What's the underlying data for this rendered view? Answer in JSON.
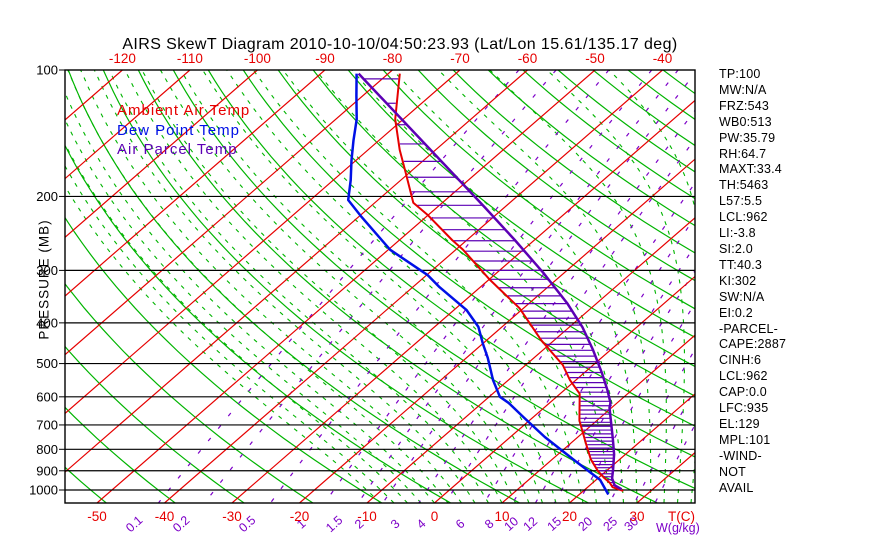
{
  "title": "AIRS SkewT Diagram 2010-10-10/04:50:23.93 (Lat/Lon 15.61/135.17 deg)",
  "legend": [
    {
      "label": "Ambient Air Temp",
      "color": "#e60000"
    },
    {
      "label": "Dew Point Temp",
      "color": "#0010e6"
    },
    {
      "label": "Air Parcel Temp",
      "color": "#5c00b4"
    }
  ],
  "stats": [
    "TP:100",
    "MW:N/A",
    "FRZ:543",
    "WB0:513",
    "PW:35.79",
    "RH:64.7",
    "MAXT:33.4",
    "TH:5463",
    "L57:5.5",
    "LCL:962",
    "LI:-3.8",
    "SI:2.0",
    "TT:40.3",
    "KI:302",
    "SW:N/A",
    "EI:0.2",
    "-PARCEL-",
    "CAPE:2887",
    "CINH:6",
    "LCL:962",
    "CAP:0.0",
    "LFC:935",
    "EL:129",
    "MPL:101",
    "-WIND-",
    "NOT",
    "AVAIL"
  ],
  "chart_data": {
    "type": "line",
    "variant": "skewt-log-p",
    "pressure_axis": {
      "label": "PRESSURE (MB)",
      "ticks": [
        100,
        200,
        300,
        400,
        500,
        600,
        700,
        800,
        900,
        1000
      ],
      "log": true,
      "min": 100,
      "max": 1074
    },
    "temp_axis_bottom": {
      "label": "T(C)",
      "ticks": [
        -50,
        -40,
        -30,
        -20,
        -10,
        0,
        10,
        20,
        30
      ],
      "color": "#e60000"
    },
    "temp_axis_top": {
      "ticks": [
        -120,
        -110,
        -100,
        -90,
        -80,
        -70,
        -60,
        -50,
        -40
      ],
      "color": "#e60000"
    },
    "mixing_ratio": {
      "label": "W(g/kg)",
      "values": [
        "0.1",
        "0.2",
        "0.5",
        "1",
        "1.5",
        "2",
        "3",
        "4",
        "6",
        "8",
        "10",
        "12",
        "15",
        "20",
        "25",
        "30"
      ],
      "color": "#7d00c8"
    },
    "grid": {
      "isotherms_c": {
        "min": -160,
        "max": 40,
        "step": 10,
        "color": "#e60000"
      },
      "dry_adiabats_theta_k": {
        "min": 210,
        "max": 460,
        "step": 10,
        "color": "#00b400"
      },
      "moist_adiabats_surface_c": {
        "min": -8,
        "max": 38,
        "step": 2,
        "color": "#00b400",
        "dashed": true
      }
    },
    "hatch": {
      "between": [
        "ambient",
        "parcel"
      ],
      "color": "#5c00b4",
      "dp_mb": 15
    },
    "series": [
      {
        "id": "ambient",
        "name": "Ambient Air Temp",
        "color": "#e60000",
        "width": 2,
        "points": [
          {
            "p": 102,
            "t": -78.3
          },
          {
            "p": 113,
            "t": -75.4
          },
          {
            "p": 131,
            "t": -71.2
          },
          {
            "p": 155,
            "t": -65.3
          },
          {
            "p": 173,
            "t": -61.1
          },
          {
            "p": 207,
            "t": -54.3
          },
          {
            "p": 221,
            "t": -50.2
          },
          {
            "p": 254,
            "t": -42.2
          },
          {
            "p": 268,
            "t": -38.9
          },
          {
            "p": 316,
            "t": -29.8
          },
          {
            "p": 369,
            "t": -20.6
          },
          {
            "p": 440,
            "t": -11.9
          },
          {
            "p": 504,
            "t": -4.5
          },
          {
            "p": 547,
            "t": -0.9
          },
          {
            "p": 590,
            "t": 2.9
          },
          {
            "p": 683,
            "t": 7.4
          },
          {
            "p": 777,
            "t": 12.4
          },
          {
            "p": 845,
            "t": 15.7
          },
          {
            "p": 902,
            "t": 18.8
          },
          {
            "p": 938,
            "t": 21.0
          },
          {
            "p": 961,
            "t": 22.5
          },
          {
            "p": 985,
            "t": 23.7
          },
          {
            "p": 1005,
            "t": 25.9
          }
        ]
      },
      {
        "id": "dewpoint",
        "name": "Dew Point Temp",
        "color": "#0010e6",
        "width": 2.5,
        "points": [
          {
            "p": 102,
            "t": -84.7
          },
          {
            "p": 115,
            "t": -81.0
          },
          {
            "p": 131,
            "t": -76.9
          },
          {
            "p": 147,
            "t": -73.8
          },
          {
            "p": 164,
            "t": -70.7
          },
          {
            "p": 183,
            "t": -67.4
          },
          {
            "p": 204,
            "t": -64.4
          },
          {
            "p": 224,
            "t": -59.5
          },
          {
            "p": 268,
            "t": -49.7
          },
          {
            "p": 308,
            "t": -39.8
          },
          {
            "p": 329,
            "t": -36.0
          },
          {
            "p": 373,
            "t": -28.1
          },
          {
            "p": 409,
            "t": -23.5
          },
          {
            "p": 447,
            "t": -20.1
          },
          {
            "p": 485,
            "t": -16.8
          },
          {
            "p": 547,
            "t": -12.3
          },
          {
            "p": 600,
            "t": -8.4
          },
          {
            "p": 620,
            "t": -6.1
          },
          {
            "p": 670,
            "t": -1.5
          },
          {
            "p": 748,
            "t": 5.1
          },
          {
            "p": 853,
            "t": 13.7
          },
          {
            "p": 946,
            "t": 20.6
          },
          {
            "p": 1025,
            "t": 24.3
          }
        ]
      },
      {
        "id": "parcel",
        "name": "Air Parcel Temp",
        "color": "#5c00b4",
        "width": 2.5,
        "points": [
          {
            "p": 102,
            "t": -84.4
          },
          {
            "p": 212,
            "t": -43.0
          },
          {
            "p": 254,
            "t": -32.9
          },
          {
            "p": 304,
            "t": -23.1
          },
          {
            "p": 359,
            "t": -14.4
          },
          {
            "p": 409,
            "t": -8.1
          },
          {
            "p": 464,
            "t": -2.6
          },
          {
            "p": 527,
            "t": 2.7
          },
          {
            "p": 577,
            "t": 6.3
          },
          {
            "p": 620,
            "t": 9.0
          },
          {
            "p": 637,
            "t": 9.7
          },
          {
            "p": 758,
            "t": 15.6
          },
          {
            "p": 822,
            "t": 18.3
          },
          {
            "p": 892,
            "t": 20.7
          },
          {
            "p": 938,
            "t": 22.1
          },
          {
            "p": 975,
            "t": 23.7
          },
          {
            "p": 996,
            "t": 25.4
          }
        ]
      }
    ]
  }
}
